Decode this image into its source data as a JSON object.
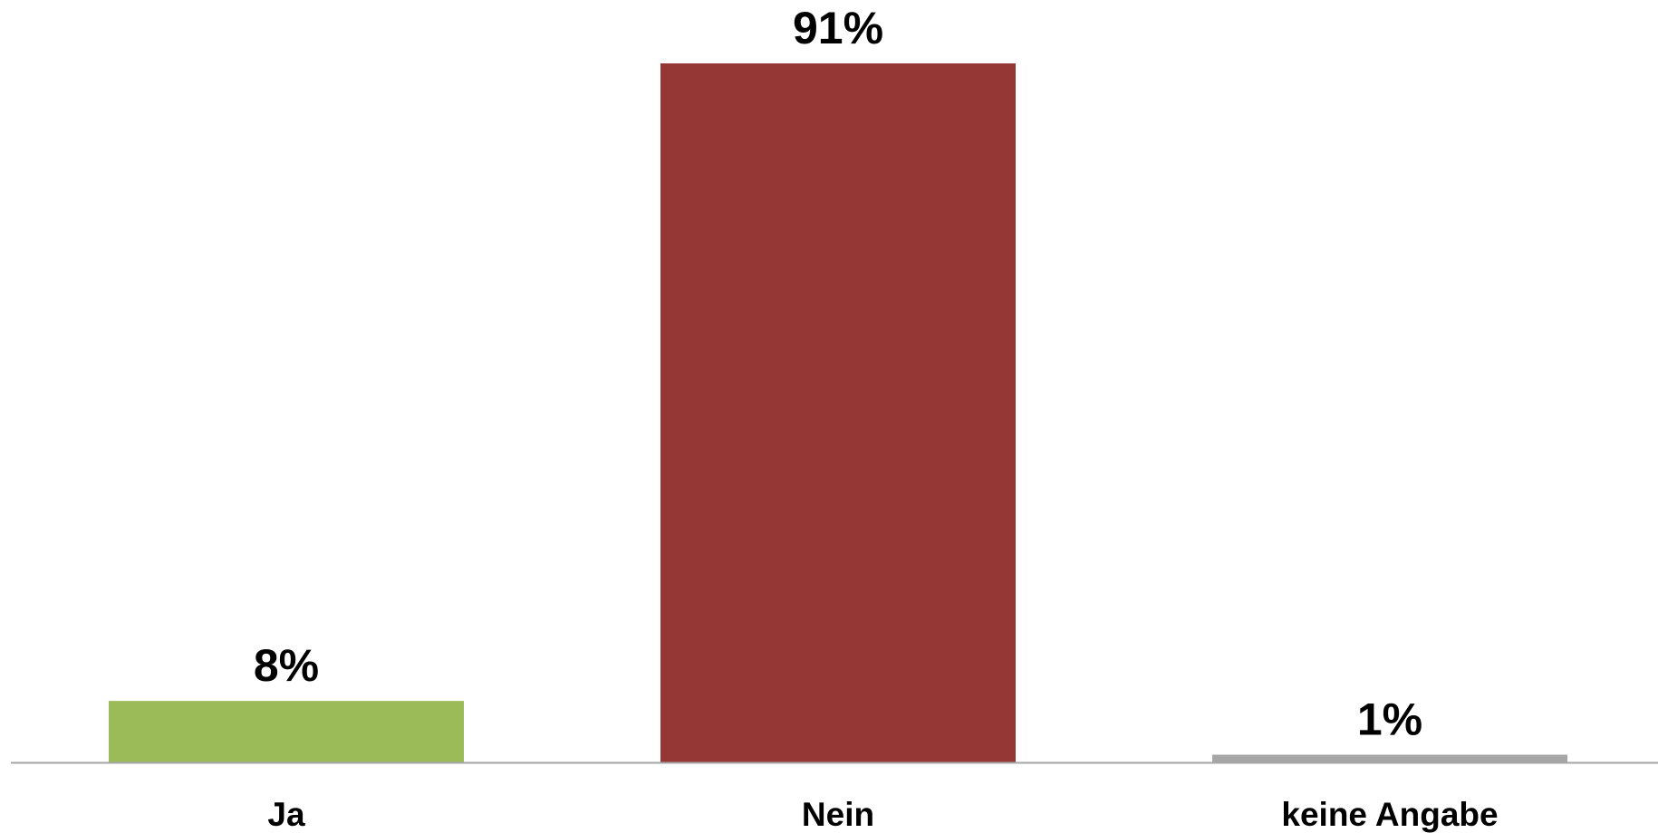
{
  "chart_data": {
    "type": "bar",
    "categories": [
      "Ja",
      "Nein",
      "keine Angabe"
    ],
    "values": [
      8,
      91,
      1
    ],
    "value_labels": [
      "8%",
      "91%",
      "1%"
    ],
    "colors": [
      "#9BBB59",
      "#953735",
      "#A6A6A6"
    ],
    "axis_color": "#A6A6A6",
    "ylim": [
      0,
      91
    ],
    "grid": false,
    "legend": "none",
    "title": "",
    "xlabel": "",
    "ylabel": ""
  }
}
